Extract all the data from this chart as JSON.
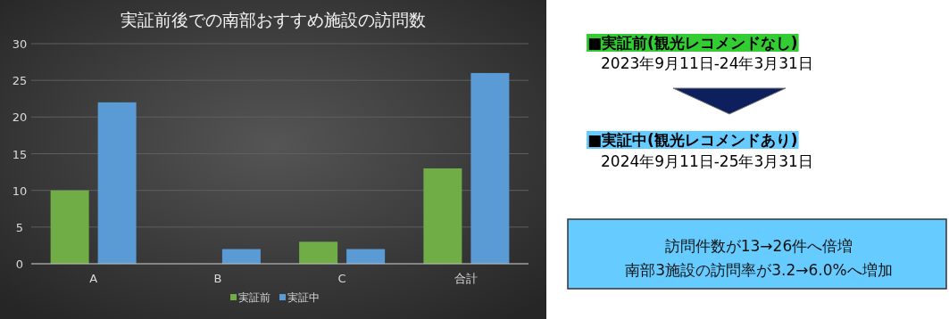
{
  "chart_data": {
    "type": "bar",
    "title": "実証前後での南部おすすめ施設の訪問数",
    "categories": [
      "A",
      "B",
      "C",
      "合計"
    ],
    "series": [
      {
        "name": "実証前",
        "color": "#70ad47",
        "values": [
          10,
          0,
          3,
          13
        ]
      },
      {
        "name": "実証中",
        "color": "#5b9bd5",
        "values": [
          22,
          2,
          2,
          26
        ]
      }
    ],
    "ylim": [
      0,
      30
    ],
    "yticks": [
      0,
      5,
      10,
      15,
      20,
      25,
      30
    ],
    "grid": "y",
    "legend": "bottom",
    "annotations": [
      "■実証前(観光レコメンドなし)",
      "2023年9月11日-24年3月31日",
      "■実証中(観光レコメンドあり)",
      "2024年9月11日-25年3月31日",
      "訪問件数が13→26件へ倍増",
      "南部3施設の訪問率が3.2→6.0%へ増加"
    ]
  }
}
